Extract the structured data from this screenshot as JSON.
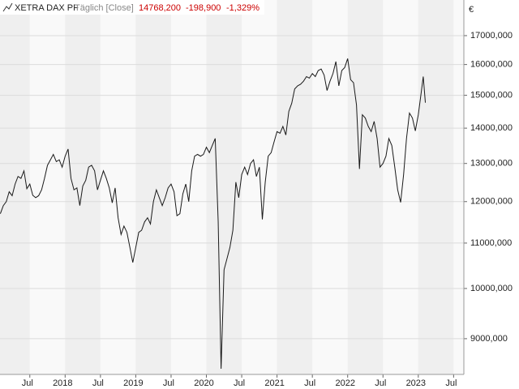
{
  "chart_data": {
    "type": "line",
    "title": "XETRA DAX PF",
    "subtitle": "Täglich [Close]",
    "annotations": [
      "14768,200",
      "-198,900",
      "-1,329%"
    ],
    "y_label": "€",
    "color": "#1a1a1a",
    "log_scale": true,
    "grid": true,
    "xlim": [
      2017.078,
      2023.645
    ],
    "xticks": [
      {
        "value": 2017.5,
        "label": "Jul"
      },
      2018,
      {
        "value": 2018.5,
        "label": "Jul"
      },
      2019,
      {
        "value": 2019.5,
        "label": "Jul"
      },
      2020,
      {
        "value": 2020.5,
        "label": "Jul"
      },
      2021,
      {
        "value": 2021.5,
        "label": "Jul"
      },
      2022,
      {
        "value": 2022.5,
        "label": "Jul"
      },
      2023,
      {
        "value": 2023.5,
        "label": "Jul"
      }
    ],
    "ylim": [
      8350,
      18320
    ],
    "yticks": [
      {
        "value": 9000,
        "label": "9000,000"
      },
      {
        "value": 10000,
        "label": "10000,000"
      },
      {
        "value": 11000,
        "label": "11000,000"
      },
      {
        "value": 12000,
        "label": "12000,000"
      },
      {
        "value": 13000,
        "label": "13000,000"
      },
      {
        "value": 14000,
        "label": "14000,000"
      },
      {
        "value": 15000,
        "label": "15000,000"
      },
      {
        "value": 16000,
        "label": "16000,000"
      },
      {
        "value": 17000,
        "label": "17000,000"
      }
    ],
    "x": [
      2017.083,
      2017.125,
      2017.167,
      2017.208,
      2017.25,
      2017.292,
      2017.333,
      2017.375,
      2017.417,
      2017.458,
      2017.5,
      2017.542,
      2017.583,
      2017.625,
      2017.667,
      2017.708,
      2017.75,
      2017.792,
      2017.833,
      2017.875,
      2017.917,
      2017.958,
      2018.0,
      2018.042,
      2018.083,
      2018.125,
      2018.167,
      2018.208,
      2018.25,
      2018.292,
      2018.333,
      2018.375,
      2018.417,
      2018.458,
      2018.5,
      2018.542,
      2018.583,
      2018.625,
      2018.667,
      2018.708,
      2018.75,
      2018.792,
      2018.833,
      2018.875,
      2018.917,
      2018.958,
      2019.0,
      2019.042,
      2019.083,
      2019.125,
      2019.167,
      2019.208,
      2019.25,
      2019.292,
      2019.333,
      2019.375,
      2019.417,
      2019.458,
      2019.5,
      2019.542,
      2019.583,
      2019.625,
      2019.667,
      2019.708,
      2019.75,
      2019.792,
      2019.833,
      2019.875,
      2019.917,
      2019.958,
      2020.0,
      2020.042,
      2020.083,
      2020.125,
      2020.167,
      2020.208,
      2020.25,
      2020.292,
      2020.333,
      2020.375,
      2020.417,
      2020.458,
      2020.5,
      2020.542,
      2020.583,
      2020.625,
      2020.667,
      2020.708,
      2020.75,
      2020.792,
      2020.833,
      2020.875,
      2020.917,
      2020.958,
      2021.0,
      2021.042,
      2021.083,
      2021.125,
      2021.167,
      2021.208,
      2021.25,
      2021.292,
      2021.333,
      2021.375,
      2021.417,
      2021.458,
      2021.5,
      2021.542,
      2021.583,
      2021.625,
      2021.667,
      2021.708,
      2021.75,
      2021.792,
      2021.833,
      2021.875,
      2021.917,
      2021.958,
      2022.0,
      2022.042,
      2022.083,
      2022.125,
      2022.167,
      2022.208,
      2022.25,
      2022.292,
      2022.333,
      2022.375,
      2022.417,
      2022.458,
      2022.5,
      2022.542,
      2022.583,
      2022.625,
      2022.667,
      2022.708,
      2022.75,
      2022.792,
      2022.833,
      2022.875,
      2022.917,
      2022.958,
      2023.0,
      2023.042,
      2023.07,
      2023.1
    ],
    "values": [
      11700,
      11900,
      12000,
      12250,
      12150,
      12450,
      12650,
      12600,
      12800,
      12330,
      12450,
      12160,
      12100,
      12150,
      12300,
      12600,
      12950,
      13100,
      13250,
      13050,
      13100,
      12900,
      13200,
      13400,
      12600,
      12300,
      12350,
      11900,
      12400,
      12550,
      12900,
      12950,
      12800,
      12300,
      12550,
      12800,
      12600,
      12350,
      11970,
      12350,
      11600,
      11200,
      11400,
      11250,
      10900,
      10560,
      10900,
      11250,
      11300,
      11500,
      11600,
      11450,
      12000,
      12300,
      12100,
      11900,
      12100,
      12350,
      12450,
      12250,
      11650,
      11700,
      12200,
      12450,
      12000,
      12800,
      13200,
      13250,
      13200,
      13250,
      13450,
      13300,
      13500,
      13700,
      11500,
      8450,
      10400,
      10650,
      10900,
      11300,
      12500,
      12100,
      12700,
      12900,
      12700,
      13000,
      13100,
      12650,
      12900,
      11560,
      12500,
      13200,
      13300,
      13600,
      13900,
      13850,
      14050,
      13800,
      14500,
      14750,
      15200,
      15300,
      15350,
      15450,
      15600,
      15550,
      15700,
      15600,
      15800,
      15850,
      15650,
      15150,
      15450,
      15700,
      16100,
      15300,
      15800,
      15900,
      16200,
      15500,
      15400,
      14700,
      12850,
      14400,
      14300,
      14050,
      13900,
      14200,
      13700,
      12900,
      13000,
      13200,
      13700,
      13500,
      12900,
      12300,
      11980,
      12700,
      13700,
      14450,
      14300,
      13920,
      14400,
      15100,
      15600,
      14768.2
    ]
  }
}
